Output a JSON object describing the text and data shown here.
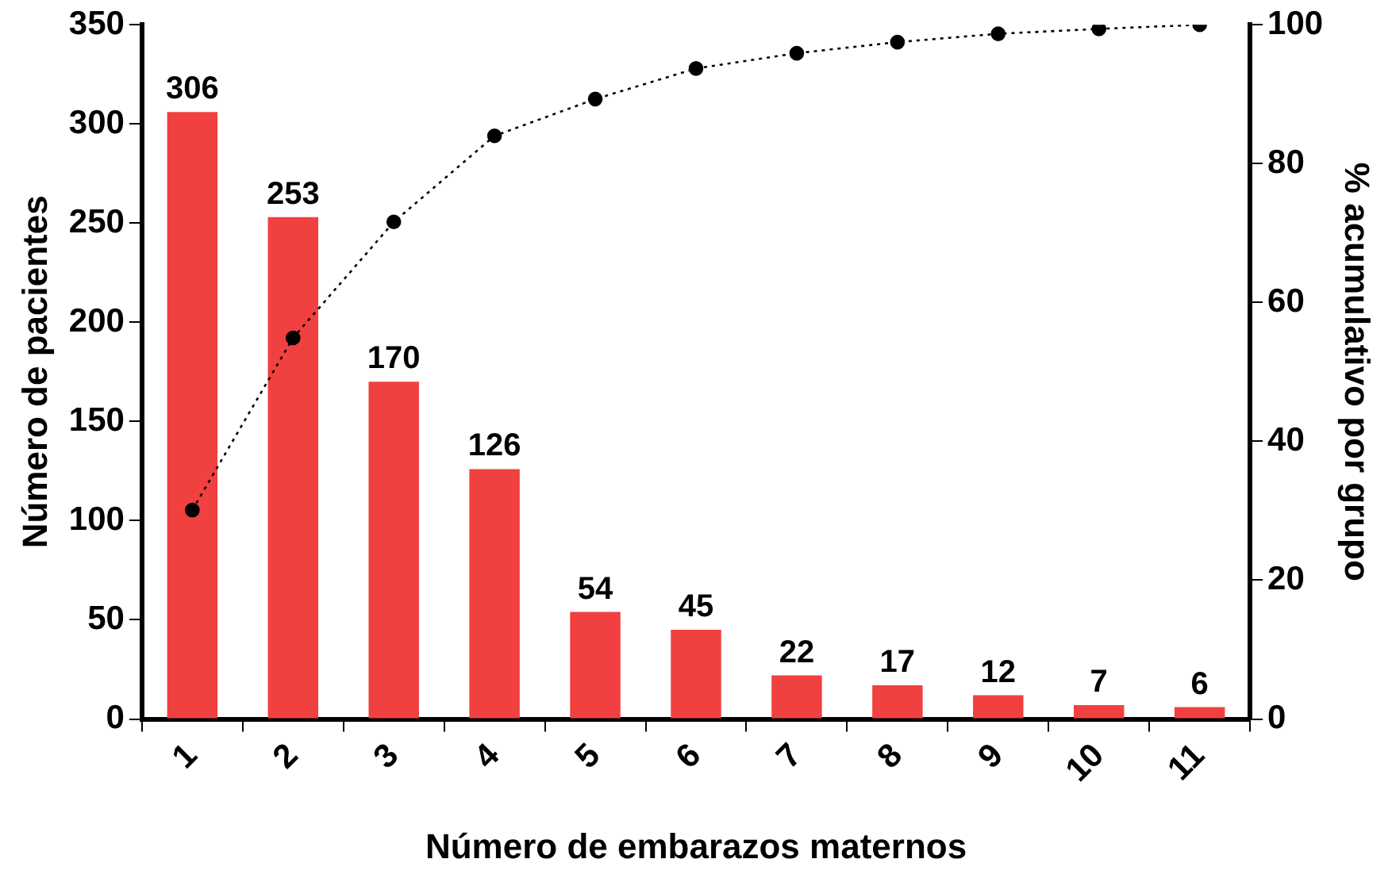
{
  "chart_data": {
    "type": "bar",
    "xlabel": "Número de embarazos maternos",
    "ylabel": "Número de pacientes",
    "y2label": "% acumulativo por grupo",
    "categories": [
      "1",
      "2",
      "3",
      "4",
      "5",
      "6",
      "7",
      "8",
      "9",
      "10",
      "11"
    ],
    "series": [
      {
        "color": "#f04040",
        "values": [
          306,
          253,
          170,
          126,
          54,
          45,
          22,
          17,
          12,
          7,
          6
        ],
        "value_labels": [
          "306",
          "253",
          "170",
          "126",
          "54",
          "45",
          "22",
          "17",
          "12",
          "7",
          "6"
        ]
      },
      {
        "type": "line",
        "axis": "y2",
        "color": "#000000",
        "marker": "circle",
        "line_style": "dotted",
        "values": [
          30.1,
          54.9,
          71.6,
          84.0,
          89.3,
          93.7,
          95.9,
          97.5,
          98.7,
          99.4,
          100
        ]
      }
    ],
    "ylim": [
      0,
      350
    ],
    "yticks": [
      0,
      50,
      100,
      150,
      200,
      250,
      300,
      350
    ],
    "y2lim": [
      0,
      100
    ],
    "y2ticks": [
      0,
      20,
      40,
      60,
      80,
      100
    ],
    "grid": false,
    "legend": false
  }
}
